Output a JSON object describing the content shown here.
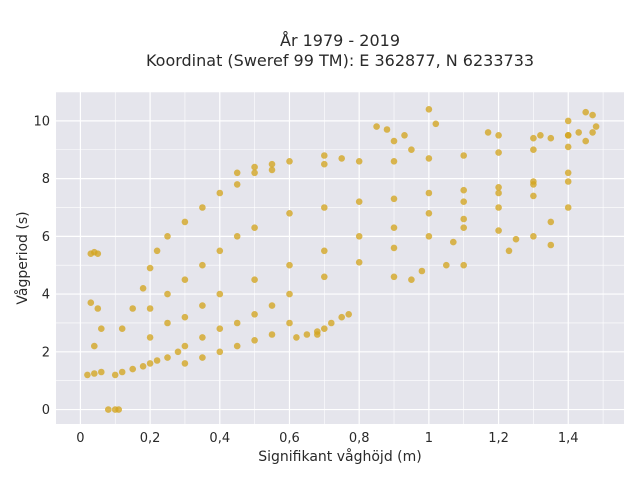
{
  "chart_data": {
    "type": "scatter",
    "title_line1": "År 1979 - 2019",
    "title_line2": "Koordinat (Sweref 99 TM): E 362877, N 6233733",
    "xlabel": "Signifikant våghöjd (m)",
    "ylabel": "Vågperiod (s)",
    "xlim": [
      -0.07,
      1.56
    ],
    "ylim": [
      -0.5,
      11
    ],
    "xticks": [
      0,
      0.2,
      0.4,
      0.6,
      0.8,
      1,
      1.2,
      1.4
    ],
    "xtick_labels": [
      "0",
      "0,2",
      "0,4",
      "0,6",
      "0,8",
      "1",
      "1,2",
      "1,4"
    ],
    "yticks": [
      0,
      2,
      4,
      6,
      8,
      10
    ],
    "ytick_labels": [
      "0",
      "2",
      "4",
      "6",
      "8",
      "10"
    ],
    "grid": true,
    "colors": {
      "marker": "#D4A520",
      "plot_bg": "#E5E5EC",
      "grid": "#ffffff"
    },
    "series": [
      {
        "name": "",
        "points": [
          [
            0.08,
            0.0
          ],
          [
            0.1,
            0.0
          ],
          [
            0.11,
            0.0
          ],
          [
            0.03,
            5.4
          ],
          [
            0.04,
            5.45
          ],
          [
            0.05,
            5.4
          ],
          [
            0.02,
            1.2
          ],
          [
            0.04,
            1.25
          ],
          [
            0.06,
            1.3
          ],
          [
            0.03,
            3.7
          ],
          [
            0.05,
            3.5
          ],
          [
            0.04,
            2.2
          ],
          [
            0.06,
            2.8
          ],
          [
            0.1,
            1.2
          ],
          [
            0.12,
            1.3
          ],
          [
            0.15,
            1.4
          ],
          [
            0.18,
            1.5
          ],
          [
            0.2,
            1.6
          ],
          [
            0.22,
            1.7
          ],
          [
            0.25,
            1.8
          ],
          [
            0.28,
            2.0
          ],
          [
            0.3,
            2.2
          ],
          [
            0.35,
            2.5
          ],
          [
            0.4,
            2.8
          ],
          [
            0.45,
            3.0
          ],
          [
            0.5,
            3.3
          ],
          [
            0.55,
            3.6
          ],
          [
            0.6,
            4.0
          ],
          [
            0.7,
            4.6
          ],
          [
            0.8,
            5.1
          ],
          [
            0.9,
            5.6
          ],
          [
            1.0,
            6.0
          ],
          [
            1.1,
            6.6
          ],
          [
            1.2,
            7.0
          ],
          [
            1.3,
            7.4
          ],
          [
            1.4,
            7.9
          ],
          [
            0.12,
            2.8
          ],
          [
            0.15,
            3.5
          ],
          [
            0.18,
            4.2
          ],
          [
            0.2,
            4.9
          ],
          [
            0.22,
            5.5
          ],
          [
            0.25,
            6.0
          ],
          [
            0.3,
            6.5
          ],
          [
            0.35,
            7.0
          ],
          [
            0.4,
            7.5
          ],
          [
            0.45,
            7.8
          ],
          [
            0.5,
            8.2
          ],
          [
            0.55,
            8.5
          ],
          [
            0.6,
            8.6
          ],
          [
            0.7,
            8.5
          ],
          [
            0.8,
            8.6
          ],
          [
            0.9,
            8.6
          ],
          [
            1.0,
            8.7
          ],
          [
            1.1,
            8.8
          ],
          [
            1.2,
            8.9
          ],
          [
            1.3,
            9.0
          ],
          [
            1.4,
            9.1
          ],
          [
            1.45,
            9.3
          ],
          [
            0.2,
            3.5
          ],
          [
            0.25,
            4.0
          ],
          [
            0.3,
            4.5
          ],
          [
            0.35,
            5.0
          ],
          [
            0.4,
            5.5
          ],
          [
            0.45,
            6.0
          ],
          [
            0.5,
            6.3
          ],
          [
            0.6,
            6.8
          ],
          [
            0.7,
            7.0
          ],
          [
            0.8,
            7.2
          ],
          [
            0.9,
            7.3
          ],
          [
            1.0,
            7.5
          ],
          [
            1.1,
            7.6
          ],
          [
            1.2,
            7.7
          ],
          [
            1.3,
            7.9
          ],
          [
            1.4,
            8.2
          ],
          [
            0.2,
            2.5
          ],
          [
            0.25,
            3.0
          ],
          [
            0.3,
            3.2
          ],
          [
            0.35,
            3.6
          ],
          [
            0.4,
            4.0
          ],
          [
            0.5,
            4.5
          ],
          [
            0.6,
            5.0
          ],
          [
            0.7,
            5.5
          ],
          [
            0.8,
            6.0
          ],
          [
            0.9,
            6.3
          ],
          [
            1.0,
            6.8
          ],
          [
            1.1,
            7.2
          ],
          [
            1.2,
            7.5
          ],
          [
            1.3,
            7.8
          ],
          [
            0.3,
            1.6
          ],
          [
            0.35,
            1.8
          ],
          [
            0.4,
            2.0
          ],
          [
            0.45,
            2.2
          ],
          [
            0.5,
            2.4
          ],
          [
            0.55,
            2.6
          ],
          [
            0.6,
            3.0
          ],
          [
            0.62,
            2.5
          ],
          [
            0.65,
            2.6
          ],
          [
            0.68,
            2.7
          ],
          [
            0.85,
            9.8
          ],
          [
            0.88,
            9.7
          ],
          [
            0.93,
            9.5
          ],
          [
            1.0,
            10.4
          ],
          [
            1.02,
            9.9
          ],
          [
            1.17,
            9.6
          ],
          [
            1.2,
            9.5
          ],
          [
            1.3,
            9.4
          ],
          [
            1.32,
            9.5
          ],
          [
            1.35,
            9.4
          ],
          [
            1.4,
            9.5
          ],
          [
            1.43,
            9.6
          ],
          [
            1.45,
            10.3
          ],
          [
            1.47,
            10.2
          ],
          [
            1.48,
            9.8
          ],
          [
            1.47,
            9.6
          ],
          [
            1.4,
            9.5
          ],
          [
            1.4,
            10.0
          ],
          [
            1.2,
            6.2
          ],
          [
            1.23,
            5.5
          ],
          [
            1.25,
            5.9
          ],
          [
            1.3,
            6.0
          ],
          [
            1.35,
            5.7
          ],
          [
            1.4,
            7.0
          ],
          [
            1.35,
            6.5
          ],
          [
            1.1,
            6.3
          ],
          [
            1.07,
            5.8
          ],
          [
            1.05,
            5.0
          ],
          [
            0.98,
            4.8
          ],
          [
            0.95,
            4.5
          ],
          [
            0.9,
            4.6
          ],
          [
            1.1,
            5.0
          ],
          [
            0.75,
            3.2
          ],
          [
            0.77,
            3.3
          ],
          [
            0.7,
            2.8
          ],
          [
            0.68,
            2.6
          ],
          [
            0.72,
            3.0
          ],
          [
            0.55,
            8.3
          ],
          [
            0.5,
            8.4
          ],
          [
            0.45,
            8.2
          ],
          [
            0.7,
            8.8
          ],
          [
            0.75,
            8.7
          ],
          [
            0.9,
            9.3
          ],
          [
            0.95,
            9.0
          ]
        ]
      }
    ]
  }
}
